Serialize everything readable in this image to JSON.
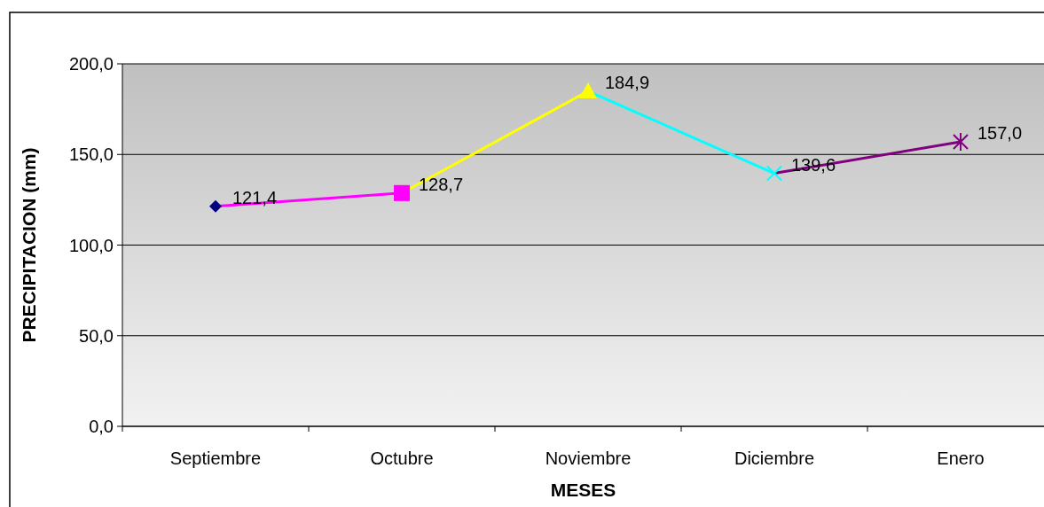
{
  "chart_data": {
    "type": "line",
    "xlabel": "MESES",
    "ylabel": "PRECIPITACION (mm)",
    "categories": [
      "Septiembre",
      "Octubre",
      "Noviembre",
      "Diciembre",
      "Enero"
    ],
    "series": [
      {
        "values": [
          121.4,
          128.7,
          184.9,
          139.6,
          157.0
        ],
        "colors": [
          "#000080",
          "#ff00ff",
          "#ffff00",
          "#00ffff",
          "#800080"
        ],
        "marker": [
          "diamond",
          "square",
          "triangle",
          "cross",
          "star"
        ],
        "value_labels": [
          "121,4",
          "128,7",
          "184,9",
          "139,6",
          "157,0"
        ]
      }
    ],
    "ylim": [
      0,
      200
    ],
    "yticks": [
      {
        "value": 0,
        "label": "0,0"
      },
      {
        "value": 50,
        "label": "50,0"
      },
      {
        "value": 100,
        "label": "100,0"
      },
      {
        "value": 150,
        "label": "150,0"
      },
      {
        "value": 200,
        "label": "200,0"
      }
    ],
    "grid": "y"
  }
}
